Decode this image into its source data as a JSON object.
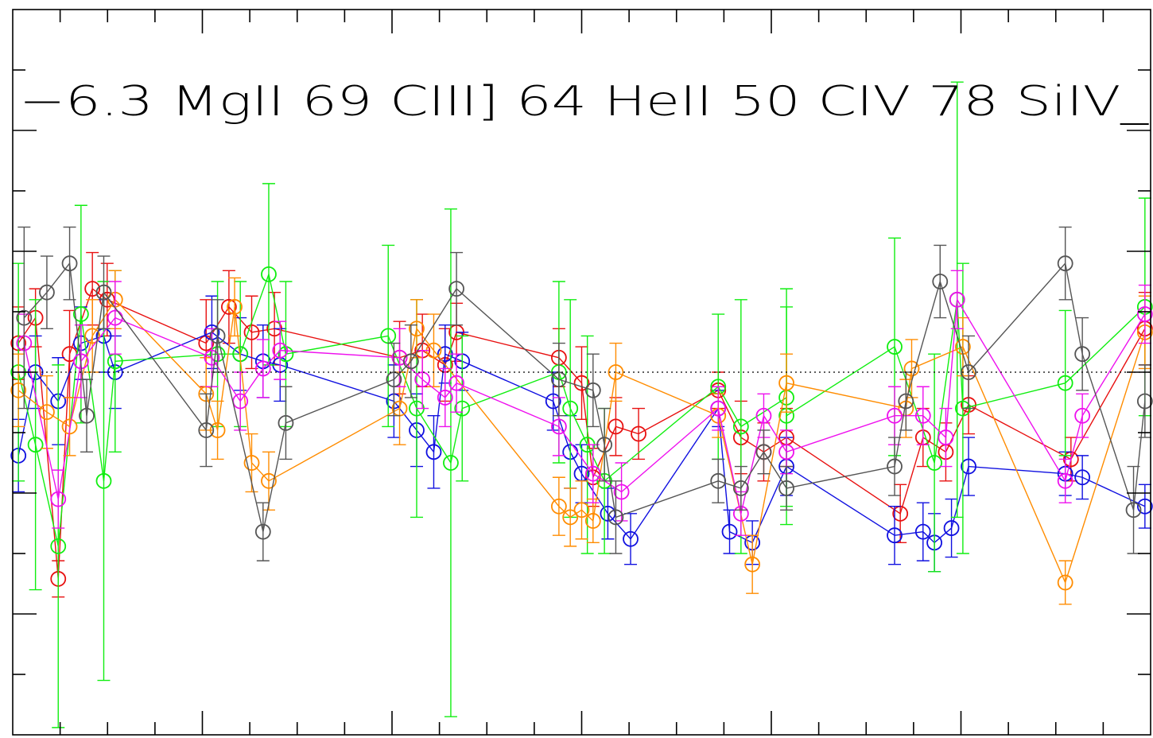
{
  "chart_data": {
    "type": "scatter",
    "title": "",
    "xlabel": "",
    "ylabel": "",
    "annotation": "−6.3 MgII 69 CIII] 64 HeII 50 CIV 78 SiIV_",
    "grid": false,
    "legend": "none",
    "xlim": [
      0,
      1
    ],
    "ylim": [
      -1,
      1
    ],
    "reference_line_y": 0,
    "colors": {
      "red": "#e81010",
      "blue": "#1010e0",
      "green": "#10ee10",
      "orange": "#ff8c00",
      "magenta": "#ee10ee",
      "gray": "#555555"
    },
    "series": [
      {
        "color": "red",
        "points": [
          {
            "x": 0.005,
            "y": 0.08,
            "e": 0.1
          },
          {
            "x": 0.02,
            "y": 0.15,
            "e": 0.08
          },
          {
            "x": 0.04,
            "y": -0.57,
            "e": 0.05
          },
          {
            "x": 0.05,
            "y": 0.05,
            "e": 0.12
          },
          {
            "x": 0.07,
            "y": 0.23,
            "e": 0.1
          },
          {
            "x": 0.083,
            "y": 0.2,
            "e": 0.1
          },
          {
            "x": 0.17,
            "y": 0.08,
            "e": 0.12
          },
          {
            "x": 0.19,
            "y": 0.18,
            "e": 0.1
          },
          {
            "x": 0.21,
            "y": 0.11,
            "e": 0.1
          },
          {
            "x": 0.23,
            "y": 0.12,
            "e": 0.1
          },
          {
            "x": 0.34,
            "y": 0.04,
            "e": 0.1
          },
          {
            "x": 0.36,
            "y": 0.06,
            "e": 0.1
          },
          {
            "x": 0.38,
            "y": 0.02,
            "e": 0.1
          },
          {
            "x": 0.39,
            "y": 0.11,
            "e": 0.08
          },
          {
            "x": 0.48,
            "y": 0.04,
            "e": 0.08
          },
          {
            "x": 0.5,
            "y": -0.03,
            "e": 0.1
          },
          {
            "x": 0.51,
            "y": -0.29,
            "e": 0.08
          },
          {
            "x": 0.53,
            "y": -0.15,
            "e": 0.08
          },
          {
            "x": 0.55,
            "y": -0.17,
            "e": 0.07
          },
          {
            "x": 0.62,
            "y": -0.05,
            "e": 0.05
          },
          {
            "x": 0.64,
            "y": -0.18,
            "e": 0.1
          },
          {
            "x": 0.66,
            "y": -0.22,
            "e": 0.08
          },
          {
            "x": 0.68,
            "y": -0.18,
            "e": 0.08
          },
          {
            "x": 0.78,
            "y": -0.39,
            "e": 0.08
          },
          {
            "x": 0.8,
            "y": -0.18,
            "e": 0.08
          },
          {
            "x": 0.82,
            "y": -0.22,
            "e": 0.08
          },
          {
            "x": 0.84,
            "y": -0.09,
            "e": 0.08
          },
          {
            "x": 0.93,
            "y": -0.24,
            "e": 0.06
          },
          {
            "x": 0.995,
            "y": 0.12,
            "e": 0.1
          }
        ]
      },
      {
        "color": "blue",
        "points": [
          {
            "x": 0.005,
            "y": -0.23,
            "e": 0.1
          },
          {
            "x": 0.02,
            "y": 0.0,
            "e": 0.1
          },
          {
            "x": 0.04,
            "y": -0.08,
            "e": 0.12
          },
          {
            "x": 0.06,
            "y": 0.08,
            "e": 0.1
          },
          {
            "x": 0.08,
            "y": 0.1,
            "e": 0.1
          },
          {
            "x": 0.09,
            "y": 0.0,
            "e": 0.1
          },
          {
            "x": 0.175,
            "y": 0.11,
            "e": 0.1
          },
          {
            "x": 0.2,
            "y": 0.05,
            "e": 0.1
          },
          {
            "x": 0.22,
            "y": 0.03,
            "e": 0.1
          },
          {
            "x": 0.235,
            "y": 0.02,
            "e": 0.1
          },
          {
            "x": 0.335,
            "y": -0.08,
            "e": 0.1
          },
          {
            "x": 0.355,
            "y": -0.16,
            "e": 0.1
          },
          {
            "x": 0.37,
            "y": -0.22,
            "e": 0.1
          },
          {
            "x": 0.38,
            "y": 0.05,
            "e": 0.08
          },
          {
            "x": 0.395,
            "y": 0.03,
            "e": 0.08
          },
          {
            "x": 0.475,
            "y": -0.08,
            "e": 0.08
          },
          {
            "x": 0.49,
            "y": -0.22,
            "e": 0.1
          },
          {
            "x": 0.5,
            "y": -0.28,
            "e": 0.08
          },
          {
            "x": 0.523,
            "y": -0.39,
            "e": 0.07
          },
          {
            "x": 0.543,
            "y": -0.46,
            "e": 0.07
          },
          {
            "x": 0.62,
            "y": -0.1,
            "e": 0.05
          },
          {
            "x": 0.63,
            "y": -0.44,
            "e": 0.06
          },
          {
            "x": 0.65,
            "y": -0.47,
            "e": 0.06
          },
          {
            "x": 0.68,
            "y": -0.26,
            "e": 0.08
          },
          {
            "x": 0.775,
            "y": -0.45,
            "e": 0.08
          },
          {
            "x": 0.8,
            "y": -0.44,
            "e": 0.08
          },
          {
            "x": 0.81,
            "y": -0.47,
            "e": 0.08
          },
          {
            "x": 0.825,
            "y": -0.43,
            "e": 0.08
          },
          {
            "x": 0.84,
            "y": -0.26,
            "e": 0.08
          },
          {
            "x": 0.925,
            "y": -0.28,
            "e": 0.06
          },
          {
            "x": 0.94,
            "y": -0.29,
            "e": 0.06
          },
          {
            "x": 0.995,
            "y": -0.37,
            "e": 0.06
          }
        ]
      },
      {
        "color": "green",
        "points": [
          {
            "x": 0.005,
            "y": 0.0,
            "e": 0.3
          },
          {
            "x": 0.02,
            "y": -0.2,
            "e": 0.4
          },
          {
            "x": 0.04,
            "y": -0.48,
            "e": 0.5
          },
          {
            "x": 0.06,
            "y": 0.16,
            "e": 0.3
          },
          {
            "x": 0.08,
            "y": -0.3,
            "e": 0.55
          },
          {
            "x": 0.09,
            "y": 0.03,
            "e": 0.25
          },
          {
            "x": 0.18,
            "y": 0.05,
            "e": 0.2
          },
          {
            "x": 0.2,
            "y": 0.05,
            "e": 0.2
          },
          {
            "x": 0.225,
            "y": 0.27,
            "e": 0.25
          },
          {
            "x": 0.24,
            "y": 0.05,
            "e": 0.2
          },
          {
            "x": 0.33,
            "y": 0.1,
            "e": 0.25
          },
          {
            "x": 0.355,
            "y": -0.1,
            "e": 0.3
          },
          {
            "x": 0.385,
            "y": -0.25,
            "e": 0.7
          },
          {
            "x": 0.395,
            "y": -0.1,
            "e": 0.2
          },
          {
            "x": 0.48,
            "y": 0.0,
            "e": 0.25
          },
          {
            "x": 0.49,
            "y": -0.1,
            "e": 0.3
          },
          {
            "x": 0.505,
            "y": -0.2,
            "e": 0.3
          },
          {
            "x": 0.52,
            "y": -0.3,
            "e": 0.2
          },
          {
            "x": 0.62,
            "y": -0.04,
            "e": 0.2
          },
          {
            "x": 0.64,
            "y": -0.15,
            "e": 0.35
          },
          {
            "x": 0.68,
            "y": -0.07,
            "e": 0.3
          },
          {
            "x": 0.68,
            "y": -0.12,
            "e": 0.3
          },
          {
            "x": 0.775,
            "y": 0.07,
            "e": 0.3
          },
          {
            "x": 0.81,
            "y": -0.25,
            "e": 0.3
          },
          {
            "x": 0.83,
            "y": 0.2,
            "e": 0.6
          },
          {
            "x": 0.835,
            "y": -0.1,
            "e": 0.4
          },
          {
            "x": 0.925,
            "y": -0.03,
            "e": 0.2
          },
          {
            "x": 0.995,
            "y": 0.18,
            "e": 0.3
          }
        ]
      },
      {
        "color": "orange",
        "points": [
          {
            "x": 0.005,
            "y": -0.05,
            "e": 0.1
          },
          {
            "x": 0.03,
            "y": -0.11,
            "e": 0.1
          },
          {
            "x": 0.05,
            "y": -0.15,
            "e": 0.08
          },
          {
            "x": 0.07,
            "y": 0.1,
            "e": 0.1
          },
          {
            "x": 0.09,
            "y": 0.2,
            "e": 0.08
          },
          {
            "x": 0.17,
            "y": -0.06,
            "e": 0.1
          },
          {
            "x": 0.18,
            "y": -0.16,
            "e": 0.08
          },
          {
            "x": 0.195,
            "y": 0.18,
            "e": 0.08
          },
          {
            "x": 0.21,
            "y": -0.25,
            "e": 0.08
          },
          {
            "x": 0.225,
            "y": -0.3,
            "e": 0.08
          },
          {
            "x": 0.34,
            "y": -0.1,
            "e": 0.1
          },
          {
            "x": 0.355,
            "y": 0.12,
            "e": 0.08
          },
          {
            "x": 0.37,
            "y": 0.06,
            "e": 0.1
          },
          {
            "x": 0.48,
            "y": -0.37,
            "e": 0.08
          },
          {
            "x": 0.49,
            "y": -0.4,
            "e": 0.08
          },
          {
            "x": 0.5,
            "y": -0.38,
            "e": 0.08
          },
          {
            "x": 0.51,
            "y": -0.41,
            "e": 0.06
          },
          {
            "x": 0.53,
            "y": -0.0,
            "e": 0.08
          },
          {
            "x": 0.62,
            "y": -0.12,
            "e": 0.06
          },
          {
            "x": 0.65,
            "y": -0.53,
            "e": 0.08
          },
          {
            "x": 0.68,
            "y": -0.03,
            "e": 0.08
          },
          {
            "x": 0.785,
            "y": -0.1,
            "e": 0.08
          },
          {
            "x": 0.79,
            "y": 0.01,
            "e": 0.08
          },
          {
            "x": 0.835,
            "y": 0.07,
            "e": 0.08
          },
          {
            "x": 0.925,
            "y": -0.58,
            "e": 0.06
          },
          {
            "x": 0.995,
            "y": 0.11,
            "e": 0.1
          }
        ]
      },
      {
        "color": "magenta",
        "points": [
          {
            "x": 0.01,
            "y": 0.08,
            "e": 0.08
          },
          {
            "x": 0.04,
            "y": -0.35,
            "e": 0.08
          },
          {
            "x": 0.06,
            "y": 0.03,
            "e": 0.1
          },
          {
            "x": 0.09,
            "y": 0.15,
            "e": 0.1
          },
          {
            "x": 0.175,
            "y": 0.04,
            "e": 0.08
          },
          {
            "x": 0.2,
            "y": -0.08,
            "e": 0.08
          },
          {
            "x": 0.22,
            "y": 0.01,
            "e": 0.08
          },
          {
            "x": 0.235,
            "y": 0.06,
            "e": 0.08
          },
          {
            "x": 0.34,
            "y": 0.04,
            "e": 0.08
          },
          {
            "x": 0.36,
            "y": -0.02,
            "e": 0.08
          },
          {
            "x": 0.38,
            "y": -0.07,
            "e": 0.08
          },
          {
            "x": 0.39,
            "y": -0.03,
            "e": 0.08
          },
          {
            "x": 0.48,
            "y": -0.15,
            "e": 0.08
          },
          {
            "x": 0.51,
            "y": -0.28,
            "e": 0.08
          },
          {
            "x": 0.535,
            "y": -0.33,
            "e": 0.08
          },
          {
            "x": 0.62,
            "y": -0.1,
            "e": 0.06
          },
          {
            "x": 0.64,
            "y": -0.39,
            "e": 0.06
          },
          {
            "x": 0.66,
            "y": -0.12,
            "e": 0.06
          },
          {
            "x": 0.68,
            "y": -0.22,
            "e": 0.06
          },
          {
            "x": 0.775,
            "y": -0.12,
            "e": 0.08
          },
          {
            "x": 0.8,
            "y": -0.12,
            "e": 0.08
          },
          {
            "x": 0.82,
            "y": -0.18,
            "e": 0.08
          },
          {
            "x": 0.83,
            "y": 0.2,
            "e": 0.08
          },
          {
            "x": 0.925,
            "y": -0.3,
            "e": 0.06
          },
          {
            "x": 0.94,
            "y": -0.12,
            "e": 0.06
          },
          {
            "x": 0.995,
            "y": 0.16,
            "e": 0.08
          }
        ]
      },
      {
        "color": "gray",
        "points": [
          {
            "x": 0.01,
            "y": 0.15,
            "e": 0.25
          },
          {
            "x": 0.03,
            "y": 0.22,
            "e": 0.1
          },
          {
            "x": 0.05,
            "y": 0.3,
            "e": 0.1
          },
          {
            "x": 0.065,
            "y": -0.12,
            "e": 0.1
          },
          {
            "x": 0.08,
            "y": 0.22,
            "e": 0.1
          },
          {
            "x": 0.17,
            "y": -0.16,
            "e": 0.1
          },
          {
            "x": 0.18,
            "y": 0.1,
            "e": 0.1
          },
          {
            "x": 0.22,
            "y": -0.44,
            "e": 0.08
          },
          {
            "x": 0.24,
            "y": -0.14,
            "e": 0.1
          },
          {
            "x": 0.335,
            "y": -0.02,
            "e": 0.1
          },
          {
            "x": 0.35,
            "y": 0.03,
            "e": 0.1
          },
          {
            "x": 0.39,
            "y": 0.23,
            "e": 0.1
          },
          {
            "x": 0.48,
            "y": -0.02,
            "e": 0.1
          },
          {
            "x": 0.51,
            "y": -0.05,
            "e": 0.1
          },
          {
            "x": 0.52,
            "y": -0.2,
            "e": 0.1
          },
          {
            "x": 0.53,
            "y": -0.4,
            "e": 0.1
          },
          {
            "x": 0.62,
            "y": -0.3,
            "e": 0.06
          },
          {
            "x": 0.64,
            "y": -0.32,
            "e": 0.06
          },
          {
            "x": 0.66,
            "y": -0.22,
            "e": 0.06
          },
          {
            "x": 0.68,
            "y": -0.32,
            "e": 0.06
          },
          {
            "x": 0.775,
            "y": -0.26,
            "e": 0.08
          },
          {
            "x": 0.785,
            "y": -0.08,
            "e": 0.08
          },
          {
            "x": 0.815,
            "y": 0.25,
            "e": 0.1
          },
          {
            "x": 0.84,
            "y": 0.0,
            "e": 0.1
          },
          {
            "x": 0.925,
            "y": 0.3,
            "e": 0.1
          },
          {
            "x": 0.94,
            "y": 0.05,
            "e": 0.1
          },
          {
            "x": 0.985,
            "y": -0.38,
            "e": 0.12
          },
          {
            "x": 0.995,
            "y": -0.08,
            "e": 0.1
          }
        ]
      }
    ]
  }
}
